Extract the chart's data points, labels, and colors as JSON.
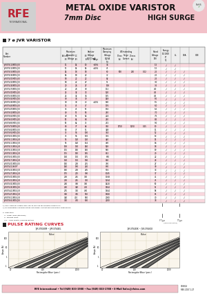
{
  "bg_color": "#ffffff",
  "pink_color": "#f2c0c8",
  "header_title1": "METAL OXIDE VARISTOR",
  "header_title2": "7mm Disc",
  "header_title3": "HIGH SURGE",
  "section1_title": "7 ø JVR VARISTOR",
  "section2_title": "PULSE RATING CURVES",
  "graph_title_left": "JVR-07S180M ~ JVR-07S440L",
  "graph_title_right": "JVR-07S430K ~ JVR-07S561K",
  "footer_text": "RFE International • Tel (949) 833-1988 • Fax (949) 833-1788 • E-Mail Sales@rfeinc.com",
  "footer_right": "C10804\nREV 2007.1.27",
  "row_colors": [
    "#f9d8de",
    "#ffffff"
  ],
  "table_rows": [
    [
      "JVR07S110M05(J,K)",
      "11",
      "14",
      "10",
      "+20%",
      "36",
      "",
      "",
      "",
      "1.5",
      "√",
      "√",
      ""
    ],
    [
      "JVR07S120M05(J,K)",
      "11",
      "14",
      "14",
      "±10%",
      "45",
      "",
      "",
      "",
      "1.5",
      "√",
      "√",
      ""
    ],
    [
      "JVR07S150M05(J,K)",
      "14",
      "18",
      "18",
      "",
      "60",
      "500",
      "250",
      "0.02",
      "2.5",
      "√",
      "√",
      "√"
    ],
    [
      "JVR07S180M05(J,K)",
      "14",
      "18",
      "22",
      "",
      "72",
      "",
      "",
      "",
      "2.5",
      "√",
      "√",
      "√"
    ],
    [
      "JVR07S200M05(J,K)",
      "18",
      "22",
      "22",
      "",
      "82",
      "",
      "",
      "",
      "2.5",
      "√",
      "√",
      "√"
    ],
    [
      "JVR07S220M05(J,K)",
      "18",
      "22",
      "27",
      "",
      "91",
      "",
      "",
      "",
      "3.0",
      "√",
      "√",
      "√"
    ],
    [
      "JVR07S240M05(J,K)",
      "20",
      "26",
      "27",
      "",
      "100",
      "",
      "",
      "",
      "3.5",
      "√",
      "√",
      "√"
    ],
    [
      "JVR07S270M05(J,K)",
      "22",
      "28",
      "30",
      "",
      "112",
      "",
      "",
      "",
      "4.0",
      "√",
      "√",
      "√"
    ],
    [
      "JVR07S300M05(J,K)",
      "25",
      "32",
      "33",
      "",
      "120",
      "",
      "",
      "",
      "4.5",
      "√",
      "√",
      "√"
    ],
    [
      "JVR07S330M05(J,K)",
      "25",
      "32",
      "36",
      "",
      "135",
      "",
      "",
      "",
      "4.5",
      "√",
      "√",
      "√"
    ],
    [
      "JVR07S360M05(J,K)",
      "30",
      "38",
      "39",
      "",
      "148",
      "",
      "",
      "",
      "5.0",
      "√",
      "√",
      "√"
    ],
    [
      "JVR07S390M05(J,K)",
      "30",
      "38",
      "43",
      "±10%",
      "160",
      "",
      "",
      "",
      "5.5",
      "√",
      "√",
      "√"
    ],
    [
      "JVR07S430M05(J,K)",
      "35",
      "45",
      "47",
      "",
      "176",
      "",
      "",
      "",
      "6.0",
      "√",
      "√",
      "√"
    ],
    [
      "JVR07S470M05(J,K)",
      "35",
      "45",
      "51",
      "",
      "192",
      "",
      "",
      "",
      "6.5",
      "√",
      "√",
      "√"
    ],
    [
      "JVR07S510M05(J,K)",
      "40",
      "51",
      "56",
      "",
      "210",
      "",
      "",
      "",
      "7.0",
      "√",
      "√",
      "√"
    ],
    [
      "JVR07S560M05(J,K)",
      "40",
      "51",
      "62",
      "",
      "224",
      "",
      "",
      "",
      "7.5",
      "√",
      "√",
      "√"
    ],
    [
      "JVR07S620M05(J,K)",
      "50",
      "64",
      "68",
      "",
      "250",
      "",
      "",
      "",
      "8.5",
      "√",
      "√",
      "√"
    ],
    [
      "JVR07S680M05(J,K)",
      "50",
      "64",
      "75",
      "",
      "272",
      "",
      "",
      "",
      "9.0",
      "√",
      "√",
      "√"
    ],
    [
      "JVR07S750M05(J,K)",
      "60",
      "77",
      "82",
      "",
      "302",
      "1750",
      "1250",
      "0.25",
      "10",
      "√",
      "√",
      "√"
    ],
    [
      "JVR07S820M05(J,K)",
      "60",
      "77",
      "91",
      "",
      "328",
      "",
      "",
      "",
      "11",
      "√",
      "√",
      "√"
    ],
    [
      "JVR07S910M05(J,K)",
      "75",
      "96",
      "100",
      "",
      "364",
      "",
      "",
      "",
      "12",
      "√",
      "√",
      "√"
    ],
    [
      "JVR07S101M05(J,K)",
      "75",
      "96",
      "110",
      "",
      "396",
      "",
      "",
      "",
      "13",
      "√",
      "√",
      "√"
    ],
    [
      "JVR07S111M05(J,K)",
      "95",
      "120",
      "120",
      "",
      "440",
      "",
      "",
      "",
      "15",
      "√",
      "√",
      "√"
    ],
    [
      "JVR07S121M05(J,K)",
      "95",
      "120",
      "132",
      "",
      "480",
      "",
      "",
      "",
      "16",
      "√",
      "√",
      "√"
    ],
    [
      "JVR07S131M05(J,K)",
      "100",
      "130",
      "140",
      "",
      "528",
      "",
      "",
      "",
      "18",
      "√",
      "√",
      "√"
    ],
    [
      "JVR07S141M05(J,K)",
      "115",
      "150",
      "150",
      "",
      "560",
      "",
      "",
      "",
      "19",
      "√",
      "√",
      "√"
    ],
    [
      "JVR07S151M05(J,K)",
      "115",
      "150",
      "165",
      "",
      "612",
      "",
      "",
      "",
      "20",
      "√",
      "√",
      "√"
    ],
    [
      "JVR07S161M05(J,K)",
      "130",
      "170",
      "175",
      "",
      "650",
      "",
      "",
      "",
      "22",
      "√",
      "√",
      "√"
    ],
    [
      "JVR07S171M05(J,K)",
      "130",
      "170",
      "190",
      "",
      "680",
      "",
      "",
      "",
      "23",
      "√",
      "√",
      "√"
    ],
    [
      "JVR07S201M05(J,K)",
      "150",
      "200",
      "215",
      "",
      "780",
      "",
      "",
      "",
      "27",
      "√",
      "√",
      "√"
    ],
    [
      "JVR07S221K65P",
      "140",
      "180",
      "240",
      "",
      "860",
      "",
      "",
      "",
      "30",
      "√",
      "√",
      "√"
    ],
    [
      "JVR07S241M05(J,K)",
      "150",
      "200",
      "265",
      "",
      "936",
      "",
      "",
      "",
      "33",
      "√",
      "√",
      "√"
    ],
    [
      "JVR07S271M05(J,K)",
      "175",
      "225",
      "300",
      "",
      "1045",
      "",
      "",
      "",
      "37",
      "√",
      "√",
      "√"
    ],
    [
      "JVR07S301M05(J,K)",
      "200",
      "255",
      "330",
      "",
      "1168",
      "",
      "",
      "",
      "41",
      "√",
      "√",
      "√"
    ],
    [
      "JVR07S321M05(J,K)",
      "200",
      "255",
      "350",
      "",
      "1264",
      "",
      "",
      "",
      "45",
      "√",
      "√",
      "√"
    ],
    [
      "JVR07S361M05(J,K)",
      "230",
      "300",
      "390",
      "",
      "1420",
      "",
      "",
      "",
      "50",
      "√",
      "√",
      "√"
    ],
    [
      "JVR07S391M05(J,K)",
      "250",
      "320",
      "430",
      "",
      "1564",
      "",
      "",
      "",
      "55",
      "√",
      "√",
      "√"
    ],
    [
      "JVR07S421M05(J,K)",
      "275",
      "350",
      "460",
      "",
      "1664",
      "",
      "",
      "",
      "58",
      "√",
      "√",
      "√"
    ],
    [
      "JVR07S471M05(J,K)",
      "300",
      "385",
      "510",
      "",
      "1860",
      "",
      "",
      "",
      "65",
      "√",
      "√",
      "√"
    ],
    [
      "JVR07S511M05(J,K)",
      "320",
      "410",
      "560",
      "",
      "2000",
      "",
      "",
      "",
      "70",
      "√",
      "√",
      "√"
    ],
    [
      "JVR07S561M05(J,K)",
      "350",
      "450",
      "600",
      "",
      "2200",
      "",
      "",
      "",
      "78",
      "√",
      "√",
      "√"
    ]
  ]
}
